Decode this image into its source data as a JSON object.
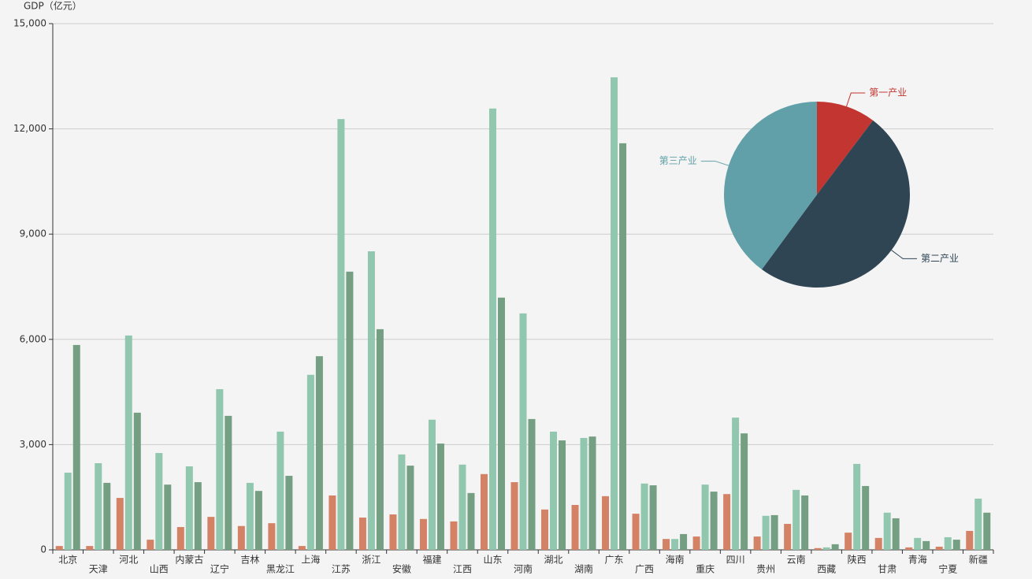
{
  "chart_data": [
    {
      "type": "bar",
      "y_label": "GDP（亿元）",
      "categories": [
        "北京",
        "天津",
        "河北",
        "山西",
        "内蒙古",
        "辽宁",
        "吉林",
        "黑龙江",
        "上海",
        "江苏",
        "浙江",
        "安徽",
        "福建",
        "江西",
        "山东",
        "河南",
        "湖北",
        "湖南",
        "广东",
        "广西",
        "海南",
        "重庆",
        "四川",
        "贵州",
        "云南",
        "西藏",
        "陕西",
        "甘肃",
        "青海",
        "宁夏",
        "新疆"
      ],
      "series": [
        {
          "color": "#d48265",
          "values": [
            110,
            110,
            1480,
            290,
            650,
            940,
            680,
            760,
            110,
            1550,
            920,
            1010,
            880,
            810,
            2160,
            1930,
            1150,
            1280,
            1530,
            1030,
            310,
            380,
            1590,
            380,
            740,
            50,
            490,
            340,
            70,
            90,
            540
          ]
        },
        {
          "color": "#91c7ae",
          "values": [
            2200,
            2470,
            6110,
            2760,
            2380,
            4580,
            1910,
            3370,
            4990,
            12280,
            8510,
            2720,
            3710,
            2430,
            12580,
            6740,
            3370,
            3190,
            13470,
            1890,
            310,
            1860,
            3770,
            970,
            1710,
            70,
            2450,
            1060,
            340,
            360,
            1460
          ]
        },
        {
          "color": "#749f83",
          "values": [
            5840,
            1910,
            3910,
            1860,
            1930,
            3820,
            1680,
            2110,
            5520,
            7930,
            6290,
            2400,
            3030,
            1620,
            7190,
            3730,
            3120,
            3230,
            11590,
            1840,
            450,
            1660,
            3320,
            990,
            1550,
            160,
            1820,
            900,
            250,
            290,
            1060
          ]
        }
      ],
      "ylim": [
        0,
        15000
      ],
      "yticks": [
        0,
        {
          "value": 3000,
          "label": "3,000"
        },
        {
          "value": 6000,
          "label": "6,000"
        },
        {
          "value": 9000,
          "label": "9,000"
        },
        {
          "value": 12000,
          "label": "12,000"
        },
        {
          "value": 15000,
          "label": "15,000"
        }
      ],
      "grid": true
    },
    {
      "type": "pie",
      "categories": [
        "第一产业",
        "第二产业",
        "第三产业"
      ],
      "values": [
        10.3,
        49.8,
        39.9
      ],
      "colors": [
        "#c23531",
        "#2f4554",
        "#61a0a8"
      ]
    }
  ]
}
